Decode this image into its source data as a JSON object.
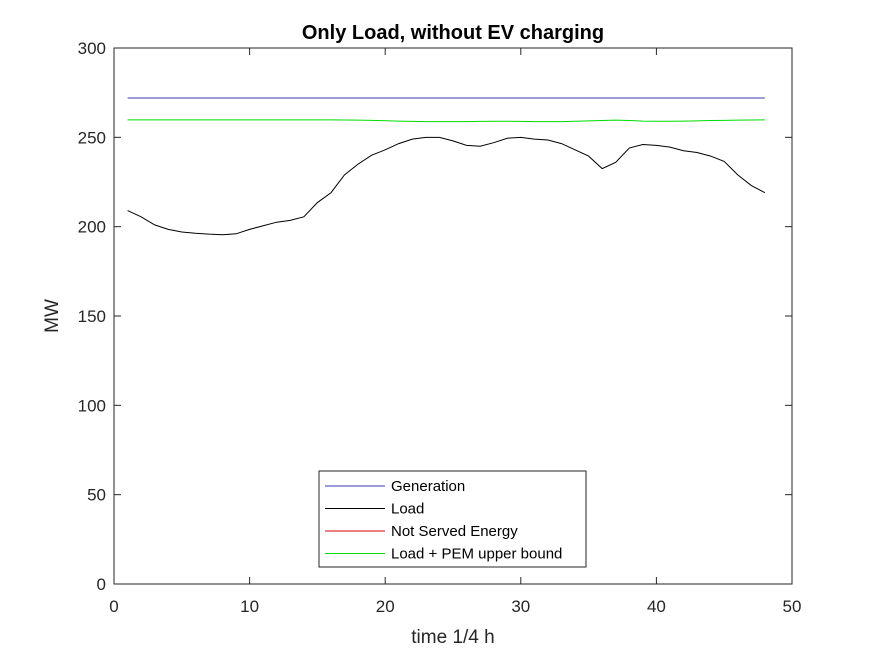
{
  "chart_data": {
    "type": "line",
    "title": "Only Load, without EV charging",
    "xlabel": "time 1/4 h",
    "ylabel": "MW",
    "xlim": [
      0,
      50
    ],
    "ylim": [
      0,
      300
    ],
    "xticks": [
      0,
      10,
      20,
      30,
      40,
      50
    ],
    "yticks": [
      0,
      50,
      100,
      150,
      200,
      250,
      300
    ],
    "grid": false,
    "legend_position": "bottom-center",
    "x": [
      1,
      2,
      3,
      4,
      5,
      6,
      7,
      8,
      9,
      10,
      11,
      12,
      13,
      14,
      15,
      16,
      17,
      18,
      19,
      20,
      21,
      22,
      23,
      24,
      25,
      26,
      27,
      28,
      29,
      30,
      31,
      32,
      33,
      34,
      35,
      36,
      37,
      38,
      39,
      40,
      41,
      42,
      43,
      44,
      45,
      46,
      47,
      48
    ],
    "series": [
      {
        "name": "Generation",
        "color": "#3a3ab0",
        "values": [
          272,
          272,
          272,
          272,
          272,
          272,
          272,
          272,
          272,
          272,
          272,
          272,
          272,
          272,
          272,
          272,
          272,
          272,
          272,
          272,
          272,
          272,
          272,
          272,
          272,
          272,
          272,
          272,
          272,
          272,
          272,
          272,
          272,
          272,
          272,
          272,
          272,
          272,
          272,
          272,
          272,
          272,
          272,
          272,
          272,
          272,
          272,
          272
        ]
      },
      {
        "name": "Load",
        "color": "#000000",
        "values": [
          209,
          205.5,
          201,
          198.5,
          197,
          196.3,
          195.8,
          195.5,
          196,
          198.5,
          200.5,
          202.5,
          203.5,
          205.5,
          213.5,
          219,
          229,
          235,
          240,
          243,
          246.5,
          249,
          250,
          250,
          248,
          245.5,
          245,
          247,
          249.5,
          250,
          249,
          248.5,
          246.5,
          243,
          239.5,
          232.5,
          236,
          244,
          246,
          245.5,
          244.5,
          242.5,
          241.5,
          239.5,
          236.5,
          229,
          223,
          219
        ]
      },
      {
        "name": "Not Served Energy",
        "color": "#e00000",
        "values": [
          0,
          0,
          0,
          0,
          0,
          0,
          0,
          0,
          0,
          0,
          0,
          0,
          0,
          0,
          0,
          0,
          0,
          0,
          0,
          0,
          0,
          0,
          0,
          0,
          0,
          0,
          0,
          0,
          0,
          0,
          0,
          0,
          0,
          0,
          0,
          0,
          0,
          0,
          0,
          0,
          0,
          0,
          0,
          0,
          0,
          0,
          0,
          0
        ]
      },
      {
        "name": "Load + PEM upper bound",
        "color": "#00dd00",
        "values": [
          259.8,
          259.8,
          259.8,
          259.8,
          259.8,
          259.8,
          259.8,
          259.8,
          259.8,
          259.8,
          259.8,
          259.8,
          259.8,
          259.8,
          259.8,
          259.8,
          259.7,
          259.6,
          259.5,
          259.3,
          259.1,
          258.9,
          258.8,
          258.8,
          258.8,
          258.8,
          258.9,
          259,
          259,
          258.9,
          258.8,
          258.8,
          258.8,
          259,
          259.2,
          259.4,
          259.6,
          259.4,
          259.1,
          259,
          259,
          259.1,
          259.2,
          259.4,
          259.5,
          259.6,
          259.7,
          259.8
        ]
      }
    ]
  }
}
